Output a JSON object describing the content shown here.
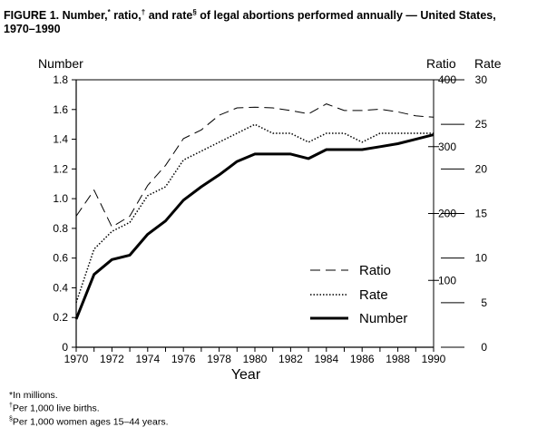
{
  "figure": {
    "title_prefix": "FIGURE 1. Number,",
    "mark_star": "*",
    "title_ratio": " ratio,",
    "mark_dagger": "†",
    "title_rate": " and rate",
    "mark_section": "§",
    "title_rest": " of legal abortions performed annually — United States, 1970–1990"
  },
  "footnotes": {
    "star_text": "*In millions.",
    "dagger_mark": "†",
    "dagger_text": "Per 1,000 live births.",
    "section_mark": "§",
    "section_text": "Per 1,000 women ages 15–44 years."
  },
  "chart_data": {
    "type": "line",
    "xlabel": "Year",
    "ylabel_left": "Number",
    "ylabel_ratio": "Ratio",
    "ylabel_rate": "Rate",
    "x": [
      1970,
      1971,
      1972,
      1973,
      1974,
      1975,
      1976,
      1977,
      1978,
      1979,
      1980,
      1981,
      1982,
      1983,
      1984,
      1985,
      1986,
      1987,
      1988,
      1989,
      1990
    ],
    "xlim": [
      1970,
      1990
    ],
    "xticks": [
      1970,
      1972,
      1974,
      1976,
      1978,
      1980,
      1982,
      1984,
      1986,
      1988,
      1990
    ],
    "y_number": {
      "lim": [
        0,
        1.8
      ],
      "ticks": [
        "0",
        "0.2",
        "0.4",
        "0.6",
        "0.8",
        "1.0",
        "1.2",
        "1.4",
        "1.6",
        "1.8"
      ]
    },
    "y_ratio": {
      "lim": [
        0,
        400
      ],
      "ticks": [
        "100",
        "200",
        "300",
        "400"
      ]
    },
    "y_rate": {
      "lim": [
        0,
        30
      ],
      "ticks": [
        "0",
        "5",
        "10",
        "15",
        "20",
        "25",
        "30"
      ]
    },
    "series": [
      {
        "name": "Ratio",
        "axis": "ratio",
        "style": "dashed",
        "values": [
          196,
          235,
          180,
          196,
          242,
          272,
          312,
          325,
          347,
          358,
          359,
          358,
          354,
          349,
          364,
          354,
          354,
          356,
          352,
          346,
          344
        ]
      },
      {
        "name": "Rate",
        "axis": "rate",
        "style": "dotted",
        "values": [
          5,
          11,
          13,
          14,
          17,
          18,
          21,
          22,
          23,
          24,
          25,
          24,
          24,
          23,
          24,
          24,
          23,
          24,
          24,
          24,
          24
        ]
      },
      {
        "name": "Number",
        "axis": "number",
        "style": "solid",
        "values": [
          0.19,
          0.49,
          0.59,
          0.62,
          0.76,
          0.85,
          0.99,
          1.08,
          1.16,
          1.25,
          1.3,
          1.3,
          1.3,
          1.27,
          1.33,
          1.33,
          1.33,
          1.35,
          1.37,
          1.4,
          1.43
        ]
      }
    ],
    "legend_position": "lower-right",
    "grid": false
  }
}
